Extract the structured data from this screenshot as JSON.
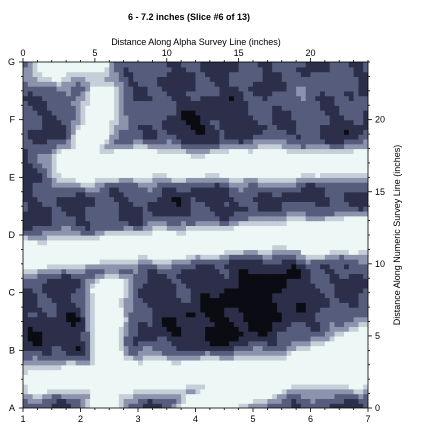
{
  "chart_data": {
    "type": "heatmap",
    "title": "6 - 7.2 inches   (Slice #6 of 13)",
    "x_top_label": "Distance Along Alpha Survey Line (inches)",
    "y_right_label": "Distance Along Numeric Survey Line (inches)",
    "x_top_ticks": [
      "0",
      "5",
      "10",
      "15",
      "20"
    ],
    "x_top_range": [
      0,
      24
    ],
    "y_right_ticks": [
      "0",
      "5",
      "10",
      "15",
      "20"
    ],
    "y_right_range": [
      0,
      24
    ],
    "x_bottom_ticks": [
      "1",
      "2",
      "3",
      "4",
      "5",
      "6",
      "7"
    ],
    "x_bottom_range": [
      1,
      7
    ],
    "y_left_ticks": [
      "A",
      "B",
      "C",
      "D",
      "E",
      "F",
      "G"
    ],
    "colormap": [
      "#0b0b12",
      "#2c2f4a",
      "#565d7c",
      "#8b93ad",
      "#c4cfd8",
      "#edf7f6"
    ],
    "background_level": 0.32,
    "features": [
      {
        "kind": "bar",
        "from": [
          1.1,
          2.1
        ],
        "to": [
          31.5,
          2.9
        ],
        "width": 1.8,
        "intensity": 0.9
      },
      {
        "kind": "bar",
        "from": [
          4.3,
          16.6
        ],
        "to": [
          5.5,
          21.5
        ],
        "width": 1.7,
        "intensity": 0.85
      },
      {
        "kind": "bar",
        "from": [
          5.6,
          0.1
        ],
        "to": [
          6.0,
          8.1
        ],
        "width": 1.7,
        "intensity": 0.95
      },
      {
        "kind": "bar",
        "from": [
          12.2,
          0.1
        ],
        "to": [
          22.4,
          4.0
        ],
        "width": 1.8,
        "intensity": 1.0
      },
      {
        "kind": "bar",
        "from": [
          22.4,
          4.0
        ],
        "to": [
          28.0,
          6.9
        ],
        "width": 1.8,
        "intensity": 0.95
      },
      {
        "kind": "bar",
        "from": [
          0.0,
          10.6
        ],
        "to": [
          24.0,
          12.4
        ],
        "width": 1.5,
        "intensity": 0.9
      },
      {
        "kind": "bar",
        "from": [
          20.0,
          11.2
        ],
        "to": [
          28.0,
          11.8
        ],
        "width": 1.2,
        "intensity": 0.75
      },
      {
        "kind": "bar",
        "from": [
          3.1,
          16.9
        ],
        "to": [
          23.5,
          17.0
        ],
        "width": 1.6,
        "intensity": 0.95
      },
      {
        "kind": "bar",
        "from": [
          1.6,
          23.9
        ],
        "to": [
          5.0,
          24.0
        ],
        "width": 2.3,
        "intensity": 0.6
      },
      {
        "kind": "blob",
        "center": [
          16.5,
          8.0
        ],
        "radius": 1.6,
        "intensity": -0.3
      },
      {
        "kind": "blob",
        "center": [
          11.5,
          18.0
        ],
        "radius": 2.0,
        "intensity": -0.25
      },
      {
        "kind": "blob",
        "center": [
          13.0,
          5.0
        ],
        "radius": 2.2,
        "intensity": -0.2
      },
      {
        "kind": "blob",
        "center": [
          3.0,
          3.5
        ],
        "radius": 2.0,
        "intensity": -0.2
      },
      {
        "kind": "blob",
        "center": [
          21.5,
          17.5
        ],
        "radius": 1.8,
        "intensity": -0.2
      },
      {
        "kind": "blob",
        "center": [
          9.0,
          19.5
        ],
        "radius": 1.6,
        "intensity": 0.15
      },
      {
        "kind": "blob",
        "center": [
          20.0,
          21.5
        ],
        "radius": 2.0,
        "intensity": 0.1
      }
    ]
  }
}
